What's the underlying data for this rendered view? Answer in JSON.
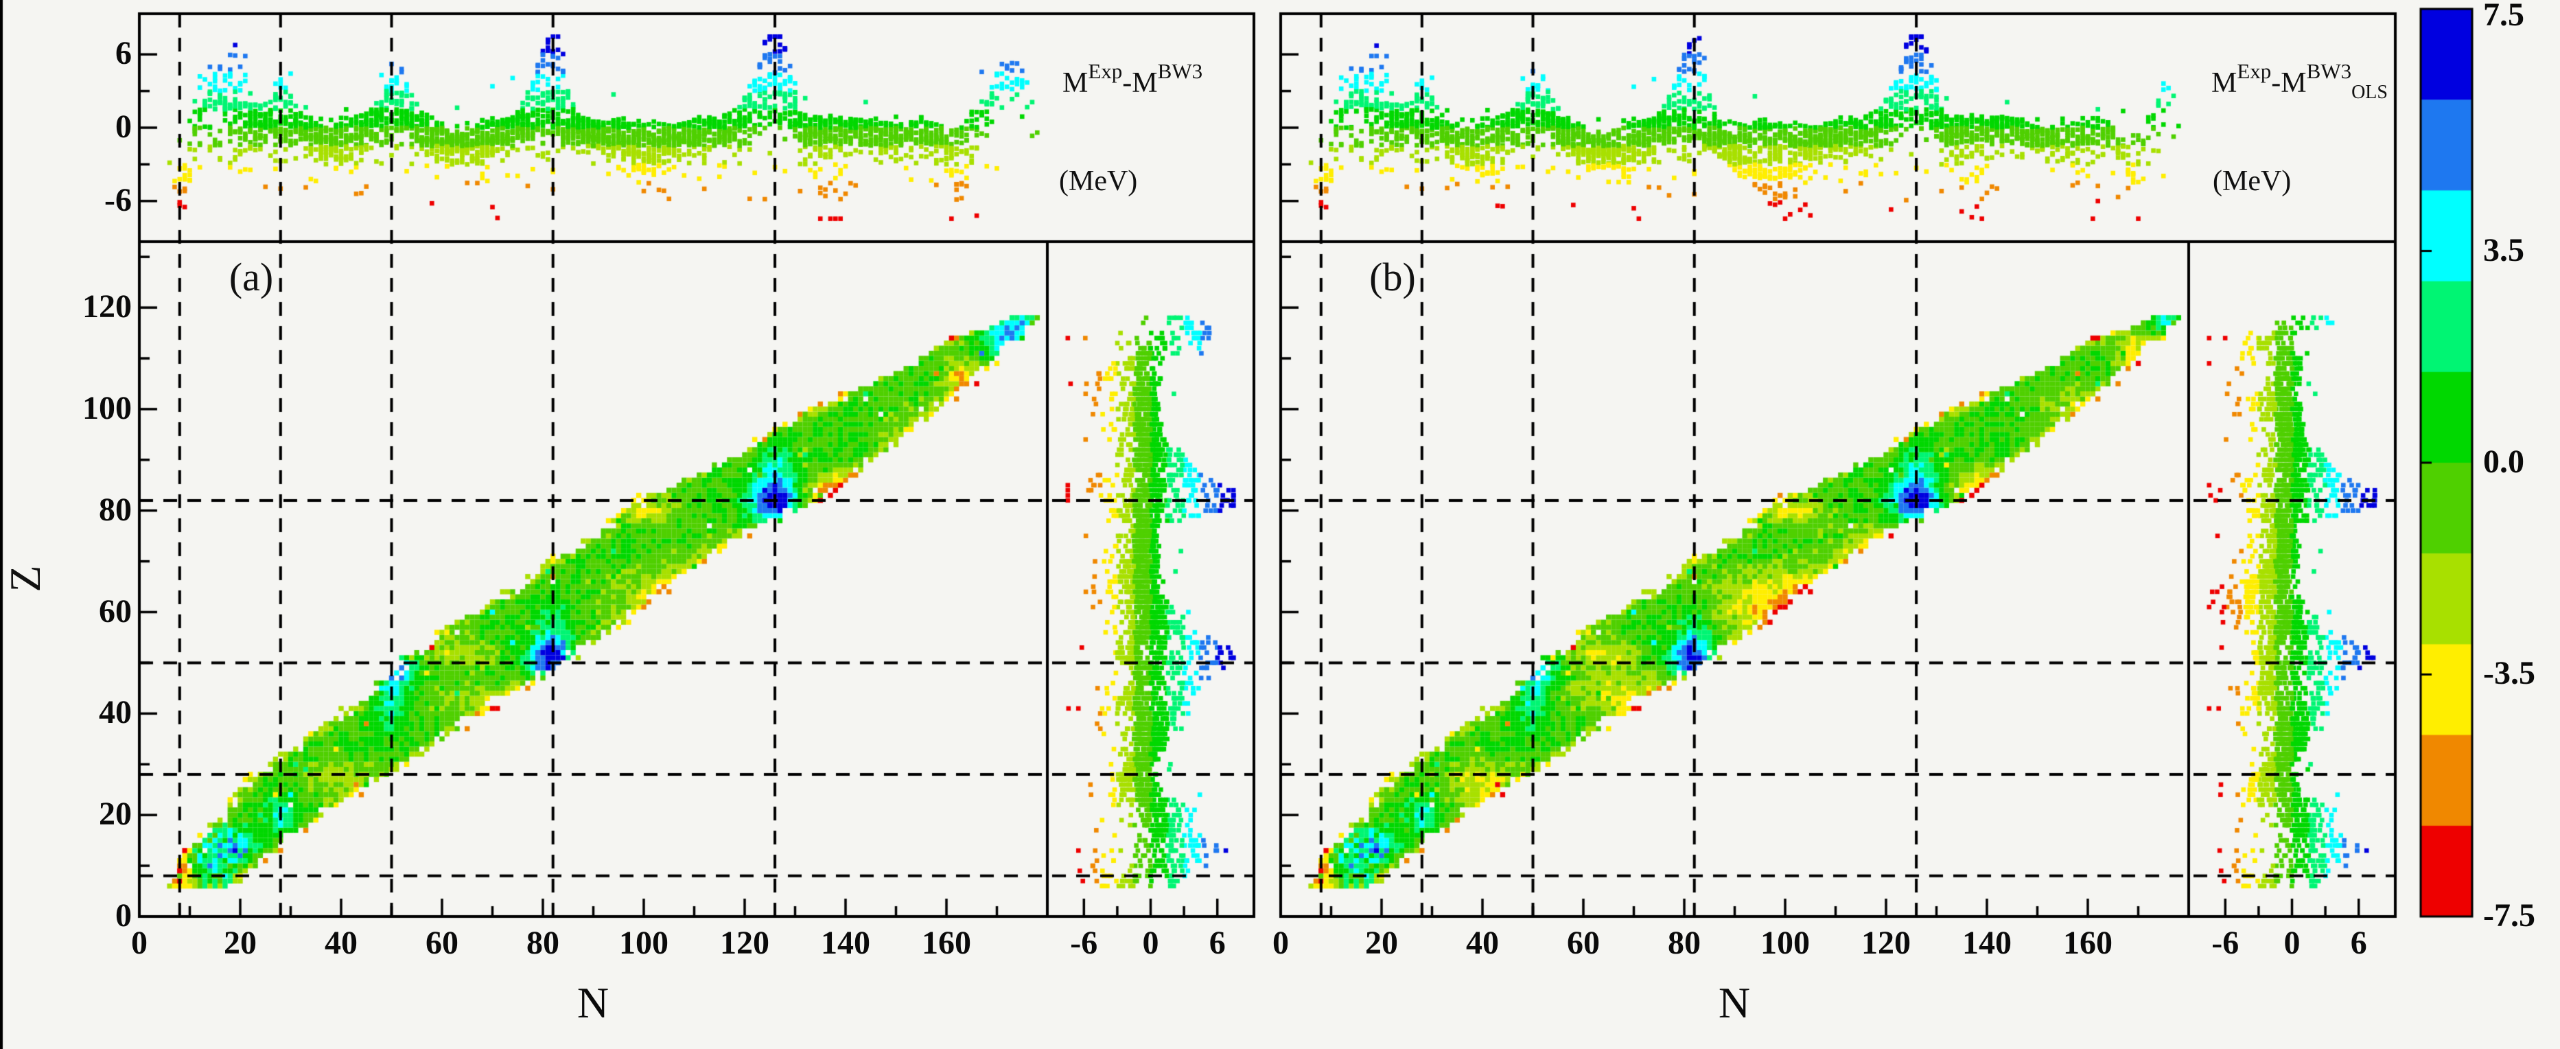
{
  "figure": {
    "panel_a_tag": "(a)",
    "panel_b_tag": "(b)",
    "xlabel": "N",
    "ylabel": "Z",
    "label_a": {
      "m1": "M",
      "sup1": "Exp",
      "m2": "-M",
      "sup2": "BW3",
      "sub2": "",
      "units": "(MeV)"
    },
    "label_b": {
      "m1": "M",
      "sup1": "Exp",
      "m2": "-M",
      "sup2": "BW3",
      "sub2": "OLS",
      "units": "(MeV)"
    }
  },
  "axes": {
    "n_major": [
      0,
      20,
      40,
      60,
      80,
      100,
      120,
      140,
      160
    ],
    "n_minor_step": 10,
    "n_max": 180,
    "z_major": [
      0,
      20,
      40,
      60,
      80,
      100,
      120
    ],
    "z_max": 133,
    "topstrip_ticks": [
      {
        "label": "6",
        "value": 6
      },
      {
        "label": "0",
        "value": 0
      },
      {
        "label": "-6",
        "value": -6
      }
    ],
    "strip_ticks": [
      {
        "label": "-6",
        "value": -6
      },
      {
        "label": "0",
        "value": 0
      },
      {
        "label": "6",
        "value": 6
      }
    ],
    "resid_minor": [
      3,
      -3
    ],
    "magic_n": [
      8,
      28,
      50,
      82,
      126
    ],
    "magic_z": [
      8,
      28,
      50,
      82
    ]
  },
  "colorbar": {
    "labels": [
      "7.5",
      "3.5",
      "0.0",
      "-3.5",
      "-7.5"
    ],
    "values": [
      7.5,
      3.5,
      0.0,
      -3.5,
      -7.5
    ],
    "vmax": 7.5,
    "vmin": -7.5,
    "band_step": 1.5,
    "colors": [
      "#0000e0",
      "#1e78f0",
      "#00ffff",
      "#00f573",
      "#00d800",
      "#4fd000",
      "#a8e000",
      "#ffee00",
      "#f08800",
      "#ee0000"
    ]
  },
  "chart_data": {
    "type": "heatmap",
    "description": "Nuclear chart of mass residuals. Two panels: (a) M_Exp - M_BW3 and (b) M_Exp - M_BW3_OLS, in MeV. Each panel has a main N-Z heatmap (one colored cell per nuclide), a top marginal strip of residual vs N, and a right marginal strip of residual vs Z, all sharing one discrete color scale from +7.5 (blue) to -7.5 (red). Dashed lines mark magic numbers N=8,28,50,82,126 and Z=8,28,50,82. Residuals are near 0 (green) along the valley of stability, strongly positive (blue) at doubly magic crossings (N,Z)=(50,50),(82,50),(126,82), negative (yellow/orange/red) in mid-shell regions and just beyond N=126 near Z=82.",
    "xlabel": "N",
    "ylabel": "Z",
    "xlim": [
      0,
      180
    ],
    "ylim": [
      0,
      133
    ],
    "resid_lim": [
      -9.3,
      9.3
    ],
    "band": [
      [
        6,
        6,
        18
      ],
      [
        8,
        7,
        21
      ],
      [
        14,
        10,
        28
      ],
      [
        20,
        16,
        36
      ],
      [
        28,
        22,
        50
      ],
      [
        36,
        34,
        62
      ],
      [
        44,
        46,
        74
      ],
      [
        50,
        52,
        84
      ],
      [
        58,
        62,
        96
      ],
      [
        66,
        76,
        106
      ],
      [
        74,
        88,
        118
      ],
      [
        82,
        98,
        136
      ],
      [
        90,
        116,
        146
      ],
      [
        98,
        130,
        157
      ],
      [
        106,
        146,
        166
      ],
      [
        112,
        158,
        172
      ],
      [
        118,
        172,
        178
      ]
    ],
    "panels": [
      {
        "name": "a",
        "value_label": "M_Exp - M_BW3 (MeV)",
        "features": [
          [
            50,
            50,
            3,
            3,
            7.4
          ],
          [
            82,
            50,
            3.2,
            3.2,
            7.4
          ],
          [
            126,
            82,
            3.5,
            3.2,
            7.4
          ],
          [
            50,
            42,
            2.2,
            5,
            3
          ],
          [
            82,
            57,
            2.2,
            5,
            2.2
          ],
          [
            126,
            89,
            2.2,
            5,
            2.2
          ],
          [
            28,
            20,
            2.5,
            2.5,
            3.2
          ],
          [
            20,
            14,
            2.2,
            2.2,
            4.2
          ],
          [
            15,
            12,
            2.5,
            2.5,
            4
          ],
          [
            9,
            8,
            1.6,
            1.6,
            -5.5
          ],
          [
            11,
            19,
            0.8,
            0.8,
            -7
          ],
          [
            22,
            8,
            1.5,
            1,
            -3
          ],
          [
            64,
            52,
            5,
            2,
            -2.6
          ],
          [
            40,
            27,
            6,
            3,
            -2
          ],
          [
            68,
            42,
            8,
            3,
            -1.8
          ],
          [
            104,
            64,
            9,
            4,
            -2.2
          ],
          [
            120,
            71,
            8,
            3.5,
            -1.8
          ],
          [
            102,
            80,
            4,
            2,
            -2.4
          ],
          [
            140,
            83,
            5,
            2.5,
            -7
          ],
          [
            158,
            96,
            8,
            4,
            -2
          ],
          [
            174,
            113,
            4,
            4,
            6.2
          ],
          [
            163,
            106,
            2.5,
            2.5,
            -4.5
          ]
        ]
      },
      {
        "name": "b",
        "value_label": "M_Exp - M_BW3_OLS (MeV)",
        "features": [
          [
            50,
            50,
            3,
            3,
            6.8
          ],
          [
            82,
            50,
            3.2,
            3.2,
            7.2
          ],
          [
            126,
            82,
            3.5,
            3.2,
            7.2
          ],
          [
            50,
            42,
            2.2,
            5,
            2.8
          ],
          [
            82,
            57,
            2.2,
            5,
            2
          ],
          [
            126,
            89,
            2.2,
            5,
            2
          ],
          [
            28,
            20,
            2.5,
            2.5,
            3.2
          ],
          [
            20,
            14,
            2.2,
            2.2,
            4.2
          ],
          [
            15,
            12,
            2.5,
            2.5,
            3.8
          ],
          [
            9,
            8,
            1.6,
            1.6,
            -5.5
          ],
          [
            11,
            19,
            0.8,
            0.8,
            -6.5
          ],
          [
            22,
            8,
            1.5,
            1,
            -3
          ],
          [
            64,
            52,
            5,
            2,
            -2.8
          ],
          [
            40,
            26,
            6,
            3.5,
            -3
          ],
          [
            68,
            44,
            8,
            3.5,
            -2.6
          ],
          [
            100,
            62,
            10,
            4.5,
            -4.4
          ],
          [
            120,
            72,
            8,
            4,
            -2.4
          ],
          [
            102,
            80,
            4,
            2,
            -2.8
          ],
          [
            140,
            84,
            5,
            2.5,
            -4.6
          ],
          [
            158,
            100,
            6,
            4,
            -2
          ],
          [
            176,
            117,
            3,
            3,
            3
          ],
          [
            170,
            112,
            3,
            3,
            -3.8
          ]
        ]
      }
    ],
    "noise_amp": 1.05,
    "light_noise": 2.5,
    "edge_amp": 2.6,
    "outlier_rate": 0.975
  }
}
